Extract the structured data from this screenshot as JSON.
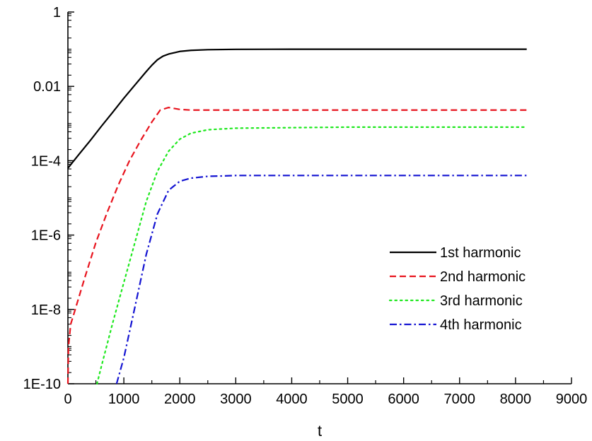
{
  "chart_data": {
    "type": "line",
    "title": "",
    "xlabel": "t",
    "ylabel": "",
    "xlim": [
      0,
      9000
    ],
    "ylim": [
      1e-10,
      1
    ],
    "yscale": "log",
    "grid": false,
    "legend_position": "right",
    "x_ticks": [
      {
        "value": 0,
        "label": "0"
      },
      {
        "value": 1000,
        "label": "1000"
      },
      {
        "value": 2000,
        "label": "2000"
      },
      {
        "value": 3000,
        "label": "3000"
      },
      {
        "value": 4000,
        "label": "4000"
      },
      {
        "value": 5000,
        "label": "5000"
      },
      {
        "value": 6000,
        "label": "6000"
      },
      {
        "value": 7000,
        "label": "7000"
      },
      {
        "value": 8000,
        "label": "8000"
      },
      {
        "value": 9000,
        "label": "9000"
      }
    ],
    "y_ticks": [
      {
        "value": 1e-10,
        "label": "1E-10"
      },
      {
        "value": 1e-08,
        "label": "1E-8"
      },
      {
        "value": 1e-06,
        "label": "1E-6"
      },
      {
        "value": 0.0001,
        "label": "1E-4"
      },
      {
        "value": 0.01,
        "label": "0.01"
      },
      {
        "value": 1,
        "label": "1"
      }
    ],
    "series": [
      {
        "name": "1st harmonic",
        "color": "#000000",
        "dash": "solid",
        "x": [
          0,
          200,
          400,
          600,
          800,
          1000,
          1200,
          1400,
          1500,
          1600,
          1700,
          1800,
          2000,
          2200,
          2500,
          3000,
          4000,
          5000,
          6000,
          7000,
          8200
        ],
        "y": [
          6.3e-05,
          0.00015,
          0.00035,
          0.00085,
          0.002,
          0.0048,
          0.011,
          0.025,
          0.037,
          0.052,
          0.065,
          0.074,
          0.087,
          0.093,
          0.097,
          0.099,
          0.1,
          0.1,
          0.1,
          0.1,
          0.1
        ]
      },
      {
        "name": "2nd harmonic",
        "color": "#e8141e",
        "dash": "dashed",
        "x": [
          0,
          10,
          50,
          100,
          300,
          500,
          700,
          900,
          1100,
          1300,
          1500,
          1650,
          1800,
          2000,
          2200,
          3000,
          5000,
          8200
        ],
        "y": [
          1e-10,
          1e-09,
          4e-09,
          7e-09,
          7e-08,
          6.3e-07,
          4e-06,
          2.2e-05,
          0.0001,
          0.00035,
          0.0011,
          0.0023,
          0.0027,
          0.0024,
          0.0023,
          0.0023,
          0.0023,
          0.0023
        ]
      },
      {
        "name": "3rd harmonic",
        "color": "#1ee81e",
        "dash": "dotted",
        "x": [
          520,
          600,
          800,
          1000,
          1200,
          1400,
          1600,
          1800,
          2000,
          2200,
          2500,
          3000,
          5000,
          8200
        ],
        "y": [
          1e-10,
          3e-10,
          4.3e-09,
          5.3e-08,
          6.5e-07,
          8e-06,
          5.2e-05,
          0.00018,
          0.00038,
          0.00055,
          0.00068,
          0.00075,
          0.0008,
          0.0008
        ]
      },
      {
        "name": "4th harmonic",
        "color": "#1414d2",
        "dash": "dashdot",
        "x": [
          870,
          1000,
          1200,
          1400,
          1600,
          1800,
          2000,
          2200,
          2500,
          2800,
          3000,
          4000,
          5000,
          8200
        ],
        "y": [
          1e-10,
          5e-10,
          1.2e-08,
          3e-07,
          3.7e-06,
          1.6e-05,
          2.8e-05,
          3.4e-05,
          3.8e-05,
          3.9e-05,
          4e-05,
          4e-05,
          4e-05,
          4e-05
        ]
      }
    ]
  }
}
